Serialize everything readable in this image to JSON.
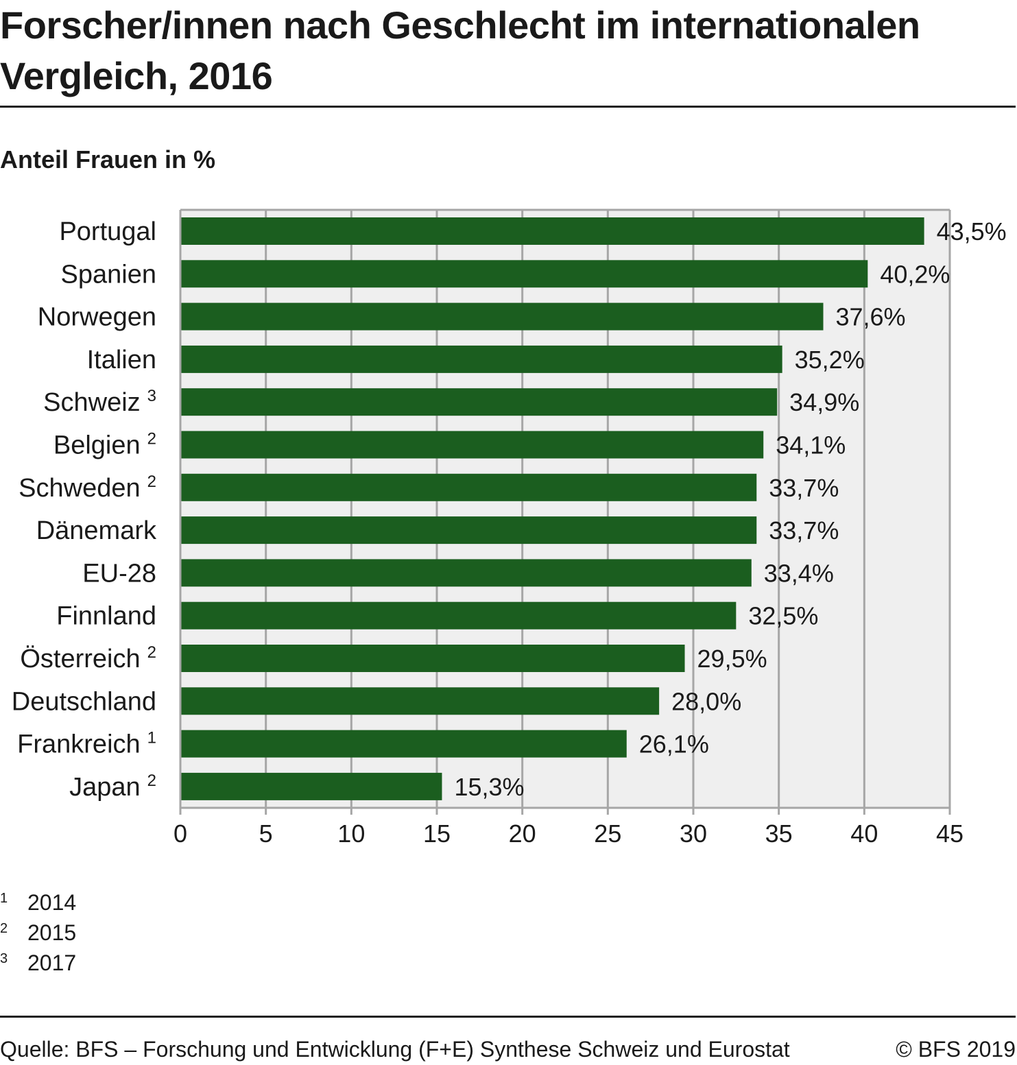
{
  "header": {
    "title": "Forscher/innen nach Geschlecht im internationalen Vergleich, 2016",
    "subtitle": "Anteil Frauen in %"
  },
  "chart_data": {
    "type": "bar",
    "orientation": "horizontal",
    "categories": [
      "Portugal",
      "Spanien",
      "Norwegen",
      "Italien",
      "Schweiz",
      "Belgien",
      "Schweden",
      "Dänemark",
      "EU-28",
      "Finnland",
      "Österreich",
      "Deutschland",
      "Frankreich",
      "Japan"
    ],
    "footnote_marks": [
      "",
      "",
      "",
      "",
      "3",
      "2",
      "2",
      "",
      "",
      "",
      "2",
      "",
      "1",
      "2"
    ],
    "values": [
      43.5,
      40.2,
      37.6,
      35.2,
      34.9,
      34.1,
      33.7,
      33.7,
      33.4,
      32.5,
      29.5,
      28.0,
      26.1,
      15.3
    ],
    "value_labels": [
      "43,5%",
      "40,2%",
      "37,6%",
      "35,2%",
      "34,9%",
      "34,1%",
      "33,7%",
      "33,7%",
      "33,4%",
      "32,5%",
      "29,5%",
      "28,0%",
      "26,1%",
      "15,3%"
    ],
    "xlim": [
      0,
      45
    ],
    "xticks": [
      0,
      5,
      10,
      15,
      20,
      25,
      30,
      35,
      40,
      45
    ],
    "grid": true,
    "colors": {
      "bar": "#1b5e1f",
      "plot_background": "#efefef",
      "grid": "#a6a6a6"
    }
  },
  "footnotes": [
    {
      "mark": "1",
      "text": "2014"
    },
    {
      "mark": "2",
      "text": "2015"
    },
    {
      "mark": "3",
      "text": "2017"
    }
  ],
  "footer": {
    "source": "Quelle: BFS – Forschung und Entwicklung (F+E) Synthese Schweiz und Eurostat",
    "copyright": "© BFS 2019"
  }
}
